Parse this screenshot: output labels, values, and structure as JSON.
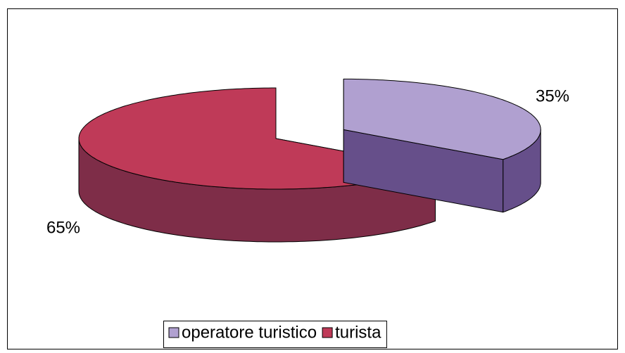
{
  "chart_data": {
    "type": "pie3d",
    "categories": [
      "operatore turistico",
      "turista"
    ],
    "values": [
      35,
      65
    ],
    "value_labels": [
      "35%",
      "65%"
    ],
    "colors": [
      "#b0a0d0",
      "#bf3a58"
    ],
    "side_colors": [
      "#664f8a",
      "#7e2d48"
    ],
    "legend": "bottom"
  }
}
